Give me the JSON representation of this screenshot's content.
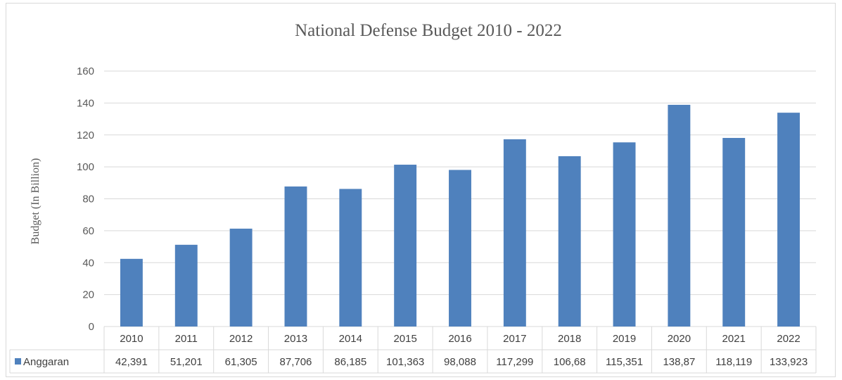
{
  "chart_data": {
    "type": "bar",
    "title": "National Defense Budget 2010 - 2022",
    "ylabel": "Budget (In Billion)",
    "xlabel": "",
    "ylim": [
      0,
      160
    ],
    "yticks": [
      0,
      20,
      40,
      60,
      80,
      100,
      120,
      140,
      160
    ],
    "grid": true,
    "data_table": true,
    "categories": [
      "2010",
      "2011",
      "2012",
      "2013",
      "2014",
      "2015",
      "2016",
      "2017",
      "2018",
      "2019",
      "2020",
      "2021",
      "2022"
    ],
    "series": [
      {
        "name": "Anggaran",
        "color": "#4f81bd",
        "values": [
          42.391,
          51.201,
          61.305,
          87.706,
          86.185,
          101.363,
          98.088,
          117.299,
          106.68,
          115.351,
          138.87,
          118.119,
          133.923
        ],
        "table_labels": [
          "42,391",
          "51,201",
          "61,305",
          "87,706",
          "86,185",
          "101,363",
          "98,088",
          "117,299",
          "106,68",
          "115,351",
          "138,87",
          "118,119",
          "133,923"
        ]
      }
    ]
  }
}
